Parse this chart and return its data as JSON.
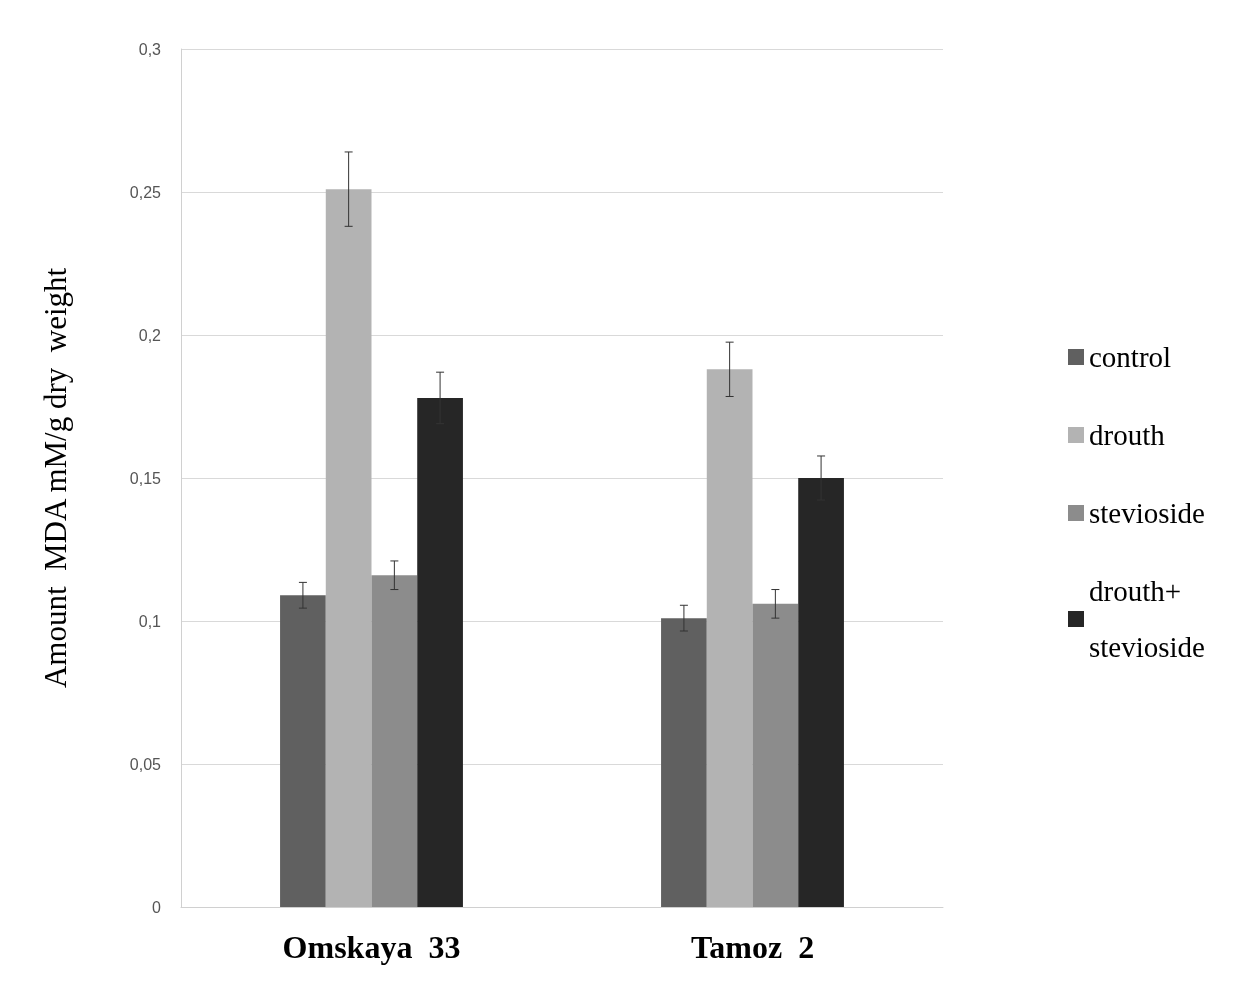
{
  "chart_data": {
    "type": "bar",
    "ylabel": "Amount  MDA mM/g dry  weight",
    "categories": [
      "Omskaya  33",
      "Tamoz  2"
    ],
    "series": [
      {
        "name": "control",
        "color": "#606060",
        "values": [
          0.109,
          0.101
        ],
        "errors": [
          0.0045,
          0.0045
        ]
      },
      {
        "name": "drouth",
        "color": "#b3b3b3",
        "values": [
          0.251,
          0.188
        ],
        "errors": [
          0.013,
          0.0095
        ]
      },
      {
        "name": "stevioside",
        "color": "#8c8c8c",
        "values": [
          0.116,
          0.106
        ],
        "errors": [
          0.005,
          0.005
        ]
      },
      {
        "name": "drouth+ stevioside",
        "color": "#262626",
        "values": [
          0.178,
          0.15
        ],
        "errors": [
          0.009,
          0.0077
        ]
      }
    ],
    "ylim": [
      0,
      0.3
    ],
    "yticks": [
      0,
      {
        "value": 0.05,
        "label": "0,05"
      },
      {
        "value": 0.1,
        "label": "0,1"
      },
      {
        "value": 0.15,
        "label": "0,15"
      },
      {
        "value": 0.2,
        "label": "0,2"
      },
      {
        "value": 0.25,
        "label": "0,25"
      },
      {
        "value": 0.3,
        "label": "0,3"
      }
    ],
    "grid": "y",
    "legend": "right"
  }
}
